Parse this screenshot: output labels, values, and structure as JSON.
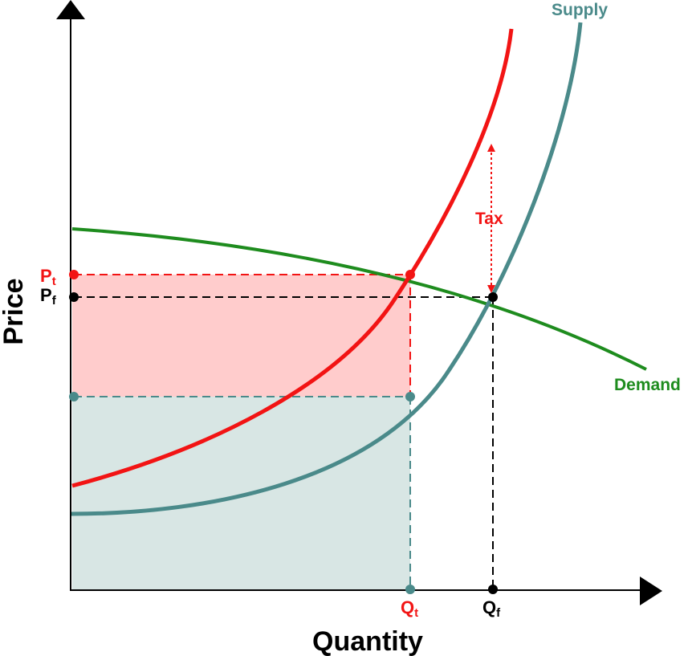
{
  "labels": {
    "supply": "Supply",
    "demand": "Demand",
    "tax": "Tax",
    "price_axis": "Price",
    "quantity_axis": "Quantity",
    "pt_main": "P",
    "pt_sub": "t",
    "pf_main": "P",
    "pf_sub": "f",
    "qt_main": "Q",
    "qt_sub": "t",
    "qf_main": "Q",
    "qf_sub": "f"
  },
  "colors": {
    "supply": "#4a8a8a",
    "taxed_supply": "#f21414",
    "demand": "#1e8c1e",
    "axis": "#000000",
    "consumer_tax_area": "#ffcccc",
    "producer_tax_area": "#d8e6e4",
    "tax_label": "#f21414"
  }
}
